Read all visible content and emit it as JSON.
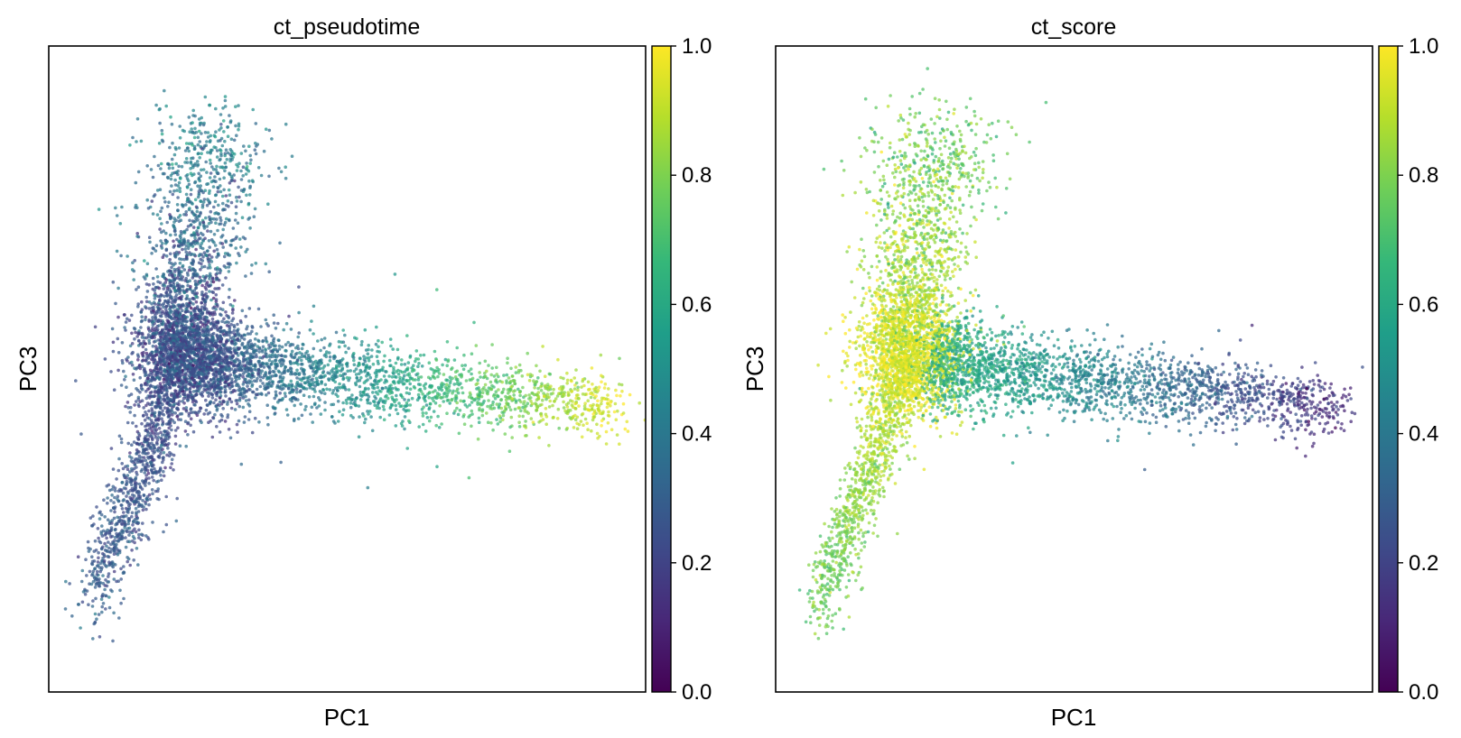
{
  "colormap": {
    "name": "viridis",
    "stops": [
      "#440154",
      "#482878",
      "#3e4a89",
      "#31688e",
      "#26828e",
      "#1f9e89",
      "#35b779",
      "#6ece58",
      "#b5de2b",
      "#fde725"
    ]
  },
  "chart_data": [
    {
      "type": "scatter",
      "title": "ct_pseudotime",
      "xlabel": "PC1",
      "ylabel": "PC3",
      "colorbar": {
        "range": [
          0,
          1
        ],
        "ticks": [
          "0.0",
          "0.2",
          "0.4",
          "0.6",
          "0.8",
          "1.0"
        ]
      },
      "color_variable": "pseudotime",
      "point_opacity": 0.72,
      "n_points_approx": 6000,
      "trajectory": {
        "branch_lower_start": [
          0.07,
          0.03
        ],
        "junction": [
          0.22,
          0.5
        ],
        "branch_upper_end": [
          0.27,
          0.96
        ],
        "branch_right_end": [
          0.95,
          0.44
        ]
      },
      "color_trend": {
        "lower_branch": [
          0.3,
          0.22
        ],
        "junction": 0.25,
        "upper_branch": [
          0.25,
          0.45
        ],
        "right_branch": [
          0.25,
          0.95
        ]
      }
    },
    {
      "type": "scatter",
      "title": "ct_score",
      "xlabel": "PC1",
      "ylabel": "PC3",
      "colorbar": {
        "range": [
          0,
          1
        ],
        "ticks": [
          "0.0",
          "0.2",
          "0.4",
          "0.6",
          "0.8",
          "1.0"
        ]
      },
      "color_variable": "score",
      "point_opacity": 0.72,
      "n_points_approx": 6000,
      "trajectory": {
        "branch_lower_start": [
          0.07,
          0.03
        ],
        "junction": [
          0.22,
          0.5
        ],
        "branch_upper_end": [
          0.27,
          0.96
        ],
        "branch_right_end": [
          0.95,
          0.44
        ]
      },
      "color_trend": {
        "lower_branch": [
          0.75,
          0.92
        ],
        "junction": 0.95,
        "upper_branch": [
          0.9,
          0.75
        ],
        "right_branch": [
          0.65,
          0.12
        ]
      }
    }
  ]
}
